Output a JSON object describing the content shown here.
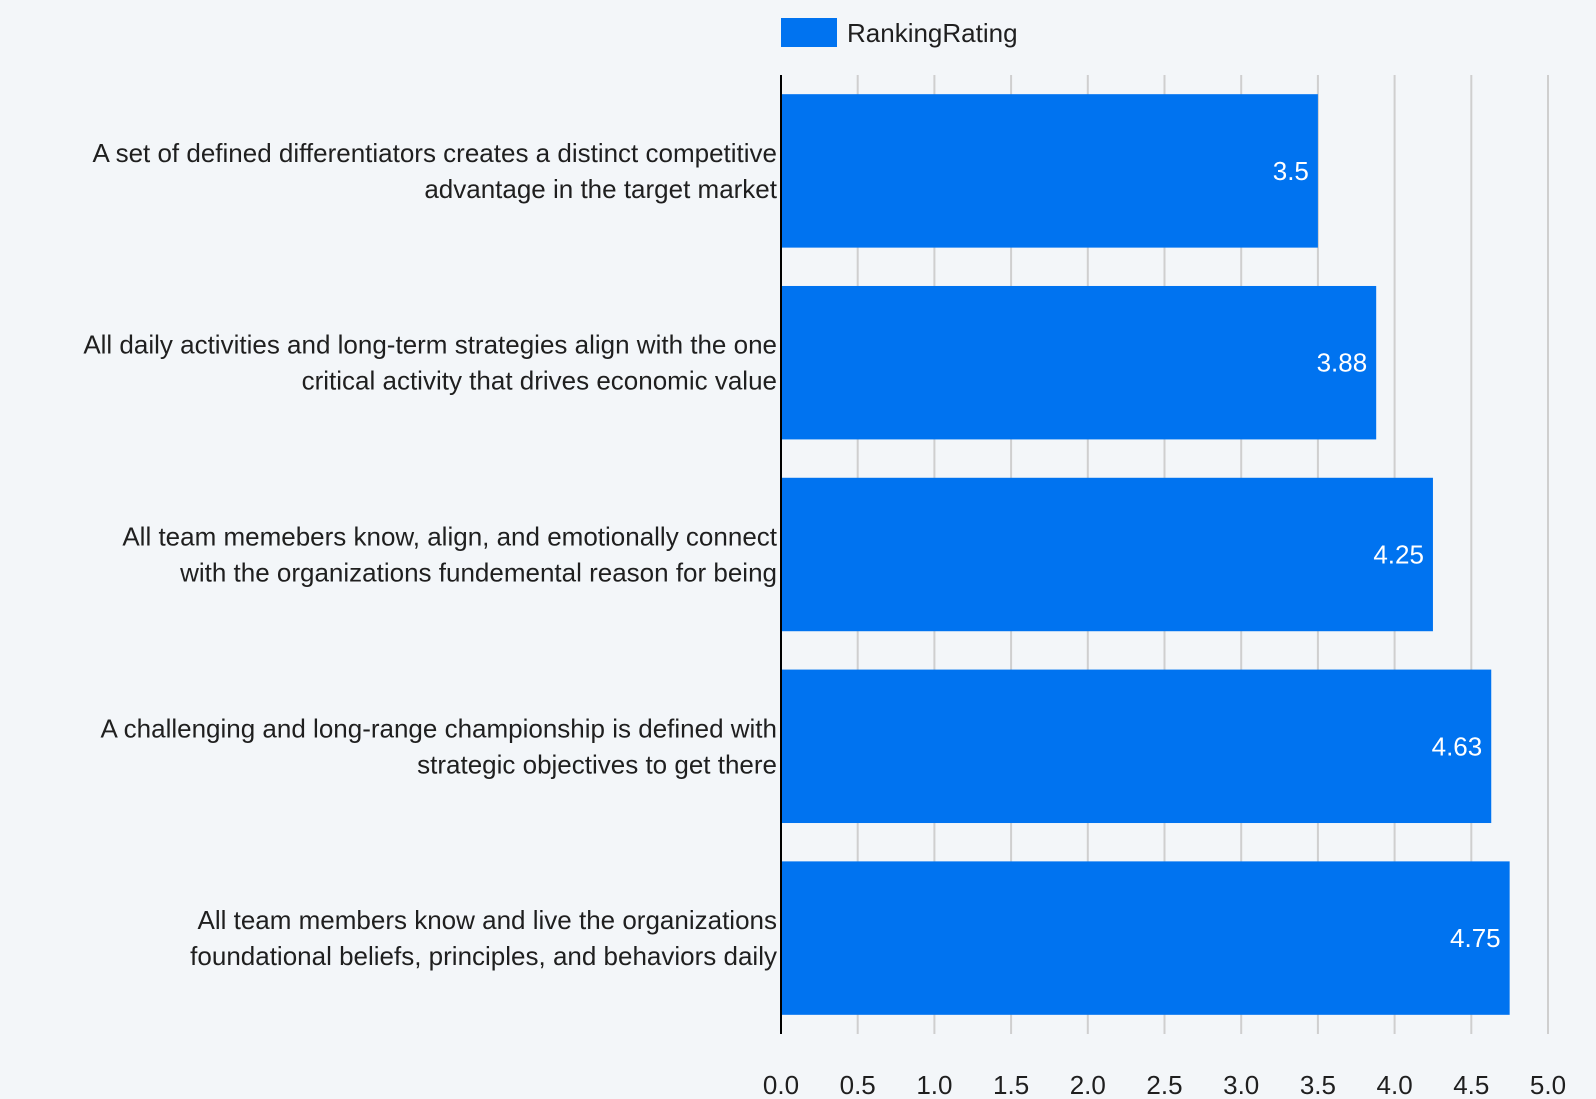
{
  "chart_data": {
    "type": "bar",
    "orientation": "horizontal",
    "legend_position": "top",
    "series": [
      {
        "name": "RankingRating",
        "color": "#0073f0",
        "values": [
          3.5,
          3.88,
          4.25,
          4.63,
          4.75
        ]
      }
    ],
    "categories": [
      [
        "A set of defined differentiators creates a distinct competitive",
        "advantage in the target market"
      ],
      [
        "All daily activities and long-term strategies align with the one",
        "critical activity that drives economic value"
      ],
      [
        "All team memebers know, align, and emotionally connect",
        "with the organizations fundemental reason for being"
      ],
      [
        "A challenging and long-range championship is defined with",
        "strategic objectives to get there"
      ],
      [
        "All team members know and live the organizations",
        "foundational beliefs, principles, and behaviors daily"
      ]
    ],
    "value_labels": [
      "3.5",
      "3.88",
      "4.25",
      "4.63",
      "4.75"
    ],
    "xlim": [
      0,
      5
    ],
    "xticks": [
      "0.0",
      "0.5",
      "1.0",
      "1.5",
      "2.0",
      "2.5",
      "3.0",
      "3.5",
      "4.0",
      "4.5",
      "5.0"
    ],
    "grid": true,
    "colors": {
      "background": "#f3f6f9",
      "gridline": "#cfcfcf",
      "axis": "#000000",
      "text": "#1f1f1f",
      "value_label": "#ffffff"
    }
  }
}
